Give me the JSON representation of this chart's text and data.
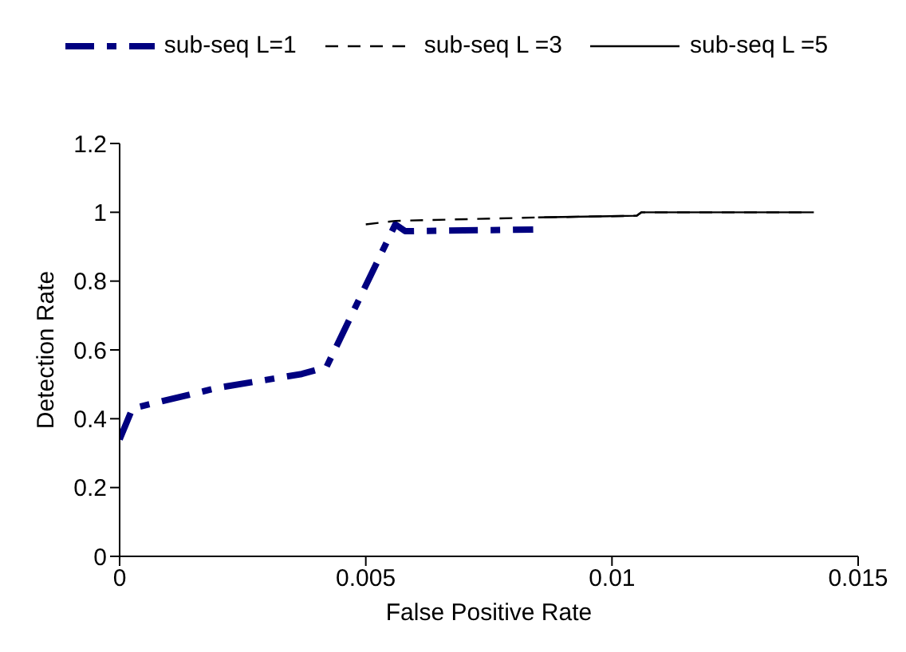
{
  "chart_data": {
    "type": "line",
    "xlabel": "False Positive Rate",
    "ylabel": "Detection Rate",
    "xlim": [
      0,
      0.015
    ],
    "xticks": [
      0,
      0.005,
      0.01,
      0.015
    ],
    "ylim": [
      0,
      1.2
    ],
    "yticks": [
      0,
      0.2,
      0.4,
      0.6,
      0.8,
      1,
      1.2
    ],
    "legend": "top",
    "marker": "none",
    "series": [
      {
        "name": "sub-seq L=1",
        "color": "#000080",
        "line_style": "dashed",
        "x": [
          0,
          0.00026,
          0.002,
          0.0037,
          0.0042,
          0.0056,
          0.0058,
          0.0084
        ],
        "values": [
          0.34,
          0.43,
          0.49,
          0.53,
          0.55,
          0.965,
          0.945,
          0.95
        ]
      },
      {
        "name": "sub-seq L =3",
        "color": "#000000",
        "line_style": "dashed",
        "x": [
          0.005,
          0.0056,
          0.0085,
          0.0105,
          0.0106,
          0.014
        ],
        "values": [
          0.965,
          0.975,
          0.985,
          0.99,
          1.0,
          1.0
        ]
      },
      {
        "name": "sub-seq L =5",
        "color": "#000000",
        "line_style": "solid",
        "x": [
          0.0085,
          0.0105,
          0.0106,
          0.0141
        ],
        "values": [
          0.985,
          0.99,
          1.0,
          1.0
        ]
      }
    ]
  }
}
